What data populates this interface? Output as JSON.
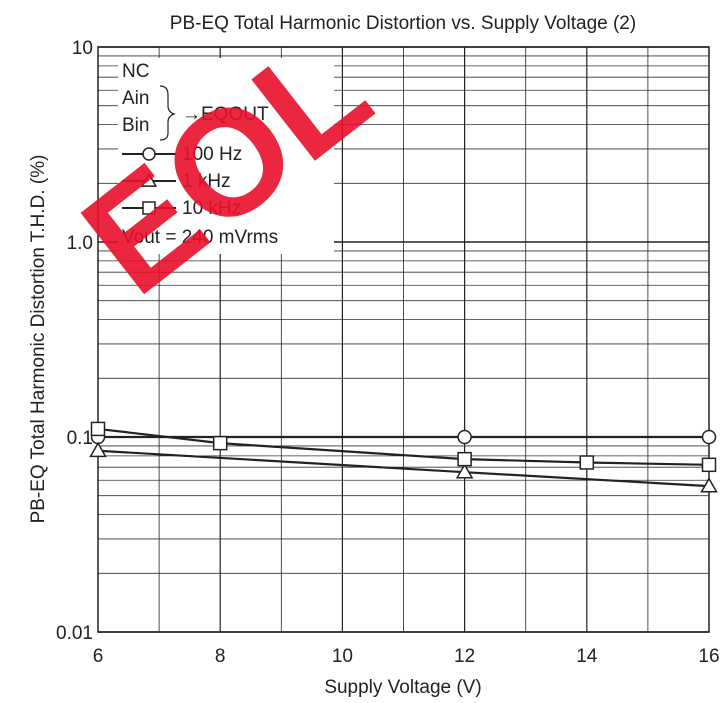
{
  "chart_data": {
    "type": "line",
    "title": "PB-EQ Total Harmonic Distortion vs. Supply Voltage (2)",
    "xlabel": "Supply Voltage  (V)",
    "ylabel": "PB-EQ Total Harmonic Distortion  T.H.D.  (%)",
    "xlim": [
      6,
      16
    ],
    "ylim": [
      0.01,
      10
    ],
    "y_scale": "log",
    "grid": true,
    "x_ticks": [
      6,
      8,
      10,
      12,
      14,
      16
    ],
    "x_tick_labels": [
      "6",
      "8",
      "10",
      "12",
      "14",
      "16"
    ],
    "y_ticks": [
      0.01,
      0.1,
      1,
      10
    ],
    "y_tick_labels": [
      "0.01",
      "0.1",
      "1.0",
      "10"
    ],
    "legend_position": "top-left",
    "legend_conditions": {
      "nc": "NC",
      "ain": "Ain",
      "bin": "Bin",
      "output": "→EQOUT",
      "vout": "Vout = 240 mVrms"
    },
    "series": [
      {
        "name": "100 Hz",
        "marker": "circle",
        "x": [
          6,
          12,
          16
        ],
        "y": [
          0.1,
          0.1,
          0.1
        ]
      },
      {
        "name": "1 kHz",
        "marker": "triangle",
        "x": [
          6,
          12,
          16
        ],
        "y": [
          0.085,
          0.066,
          0.056
        ]
      },
      {
        "name": "10 kHz",
        "marker": "square",
        "x": [
          6,
          8,
          12,
          14,
          16
        ],
        "y": [
          0.11,
          0.093,
          0.077,
          0.074,
          0.072
        ]
      }
    ]
  },
  "watermark": "EOL"
}
